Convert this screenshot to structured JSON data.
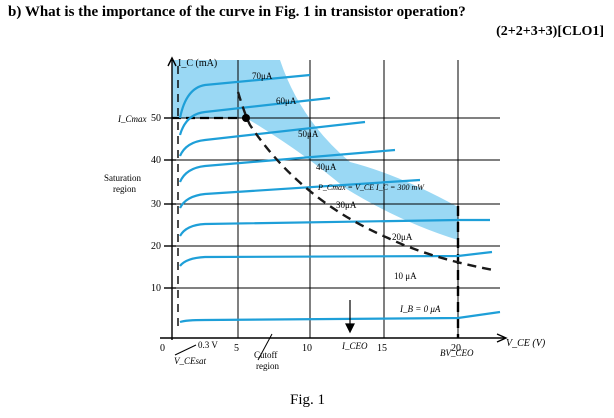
{
  "question": {
    "text": "b) What is the importance of the curve in Fig. 1 in transistor operation?",
    "marks": "(2+2+3+3)[CLO1]"
  },
  "figure": {
    "caption": "Fig. 1",
    "y_axis_label": "I_C (mA)",
    "x_axis_label": "V_CE (V)",
    "y_ticks": [
      "10",
      "20",
      "30",
      "40",
      "50"
    ],
    "x_ticks": [
      "0",
      "5",
      "10",
      "15",
      "20"
    ],
    "ic_max_label": "I_Cmax",
    "saturation_region_label": [
      "Saturation",
      "region"
    ],
    "cutoff_region_label": [
      "Cutoff",
      "region"
    ],
    "vce_sat_label": "V_CEsat",
    "vce_sat_value": "0.3 V",
    "iceo_label": "I_CEO",
    "bvceo_label": "BV_CEO",
    "power_label": "P_Cmax = V_CE I_C = 300 mW",
    "curve_labels": [
      "70μA",
      "60μA",
      "50μA",
      "40μA",
      "30μA",
      "20μA",
      "10 μA",
      "I_B = 0 μA"
    ],
    "colors": {
      "curve": "#1e9fd8",
      "safe_region": "#9ad8f4",
      "boundary": "#1a1a1a"
    }
  }
}
